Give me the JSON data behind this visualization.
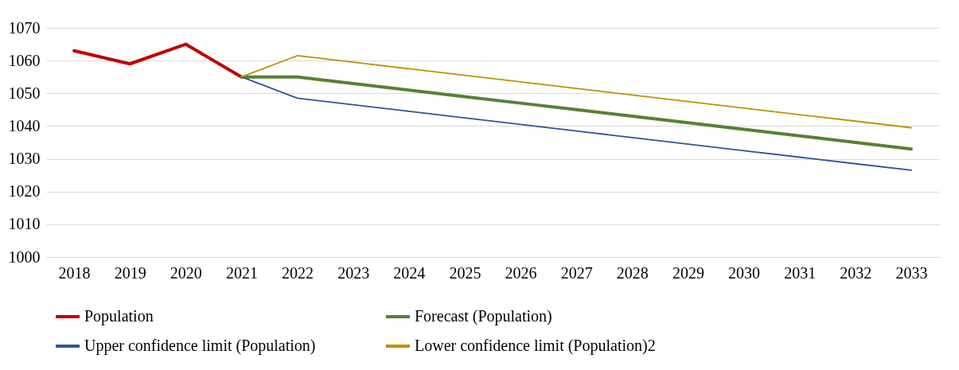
{
  "chart_data": {
    "type": "line",
    "categories": [
      "2018",
      "2019",
      "2020",
      "2021",
      "2022",
      "2023",
      "2024",
      "2025",
      "2026",
      "2027",
      "2028",
      "2029",
      "2030",
      "2031",
      "2032",
      "2033"
    ],
    "ylim": [
      1000,
      1070
    ],
    "yticks": [
      1000,
      1010,
      1020,
      1030,
      1040,
      1050,
      1060,
      1070
    ],
    "grid": "y",
    "legend": "bottom",
    "marker": "none",
    "line_style": "solid",
    "series": [
      {
        "name": "Population",
        "color": "#c00000",
        "values": [
          1063,
          1059,
          1065,
          1055,
          null,
          null,
          null,
          null,
          null,
          null,
          null,
          null,
          null,
          null,
          null,
          null
        ]
      },
      {
        "name": "Forecast (Population)",
        "color": "#548235",
        "values": [
          null,
          null,
          null,
          1055,
          1055,
          1053,
          1051,
          1049,
          1047,
          1045,
          1043,
          1041,
          1039,
          1037,
          1035,
          1033
        ]
      },
      {
        "name": "Upper confidence limit (Population)",
        "color": "#2f5597",
        "values": [
          null,
          null,
          null,
          1055,
          1048.5,
          1046.5,
          1044.5,
          1042.5,
          1040.5,
          1038.5,
          1036.5,
          1034.5,
          1032.5,
          1030.5,
          1028.5,
          1026.5
        ]
      },
      {
        "name": "Lower confidence limit (Population)2",
        "color": "#bf9000",
        "values": [
          null,
          null,
          null,
          1055,
          1061.5,
          1059.5,
          1057.5,
          1055.5,
          1053.5,
          1051.5,
          1049.5,
          1047.5,
          1045.5,
          1043.5,
          1041.5,
          1039.5
        ]
      }
    ]
  }
}
